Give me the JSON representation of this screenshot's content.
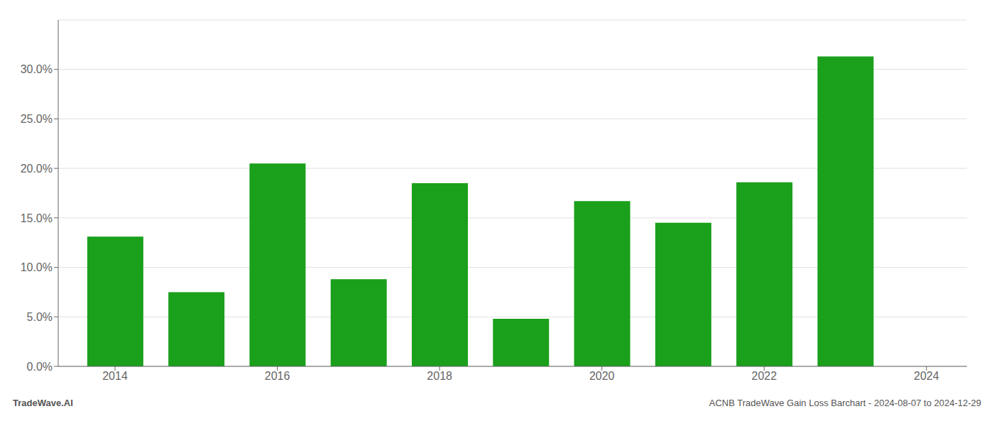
{
  "chart_data": {
    "type": "bar",
    "x": [
      2014,
      2015,
      2016,
      2017,
      2018,
      2019,
      2020,
      2021,
      2022,
      2023
    ],
    "values": [
      0.131,
      0.075,
      0.205,
      0.088,
      0.185,
      0.048,
      0.167,
      0.145,
      0.186,
      0.313
    ],
    "color": "#1aa01a",
    "xlim": [
      2013.3,
      2024.5
    ],
    "xticks": [
      2014,
      2016,
      2018,
      2020,
      2022,
      2024
    ],
    "ylim": [
      0,
      0.35
    ],
    "yticks": [
      {
        "value": 0.0,
        "label": "0.0%"
      },
      {
        "value": 0.05,
        "label": "5.0%"
      },
      {
        "value": 0.1,
        "label": "10.0%"
      },
      {
        "value": 0.15,
        "label": "15.0%"
      },
      {
        "value": 0.2,
        "label": "20.0%"
      },
      {
        "value": 0.25,
        "label": "25.0%"
      },
      {
        "value": 0.3,
        "label": "30.0%"
      }
    ],
    "grid": true,
    "annotations": [
      "TradeWave.AI",
      "ACNB TradeWave Gain Loss Barchart - 2024-08-07 to 2024-12-29"
    ]
  }
}
